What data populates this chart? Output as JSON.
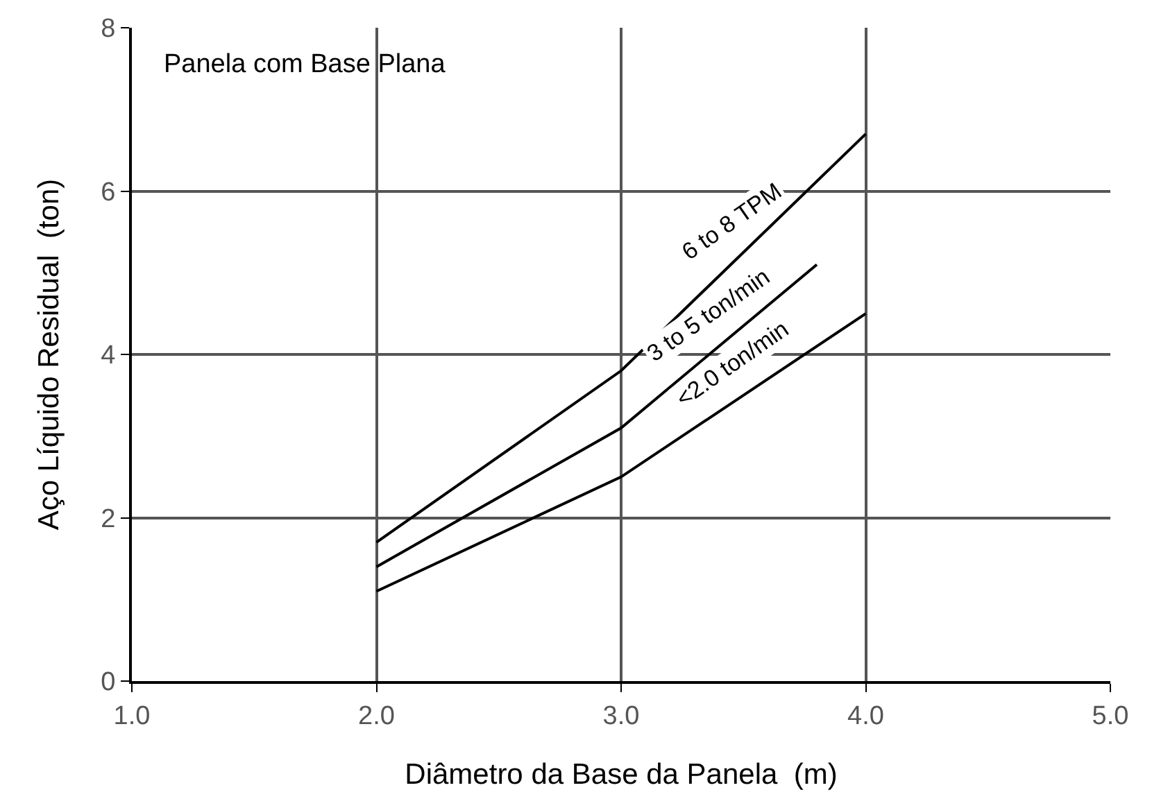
{
  "chart_data": {
    "type": "line",
    "xlabel": "Diâmetro da Base da Panela  (m)",
    "ylabel": "Aço Líquido Residual  (ton)",
    "series": [
      {
        "name": "6 to 8 TPM",
        "color": "#000000",
        "x": [
          2.0,
          3.0,
          4.0
        ],
        "values": [
          1.7,
          3.8,
          6.7
        ]
      },
      {
        "name": "3 to 5 ton/min",
        "color": "#000000",
        "x": [
          2.0,
          3.0,
          3.8
        ],
        "values": [
          1.4,
          3.1,
          5.1
        ]
      },
      {
        "name": "<2.0 ton/min",
        "color": "#000000",
        "x": [
          2.0,
          3.0,
          4.0
        ],
        "values": [
          1.1,
          2.5,
          4.5
        ]
      }
    ],
    "annotations": [
      "Panela com Base Plana"
    ],
    "xlim": [
      1,
      5
    ],
    "xticks": [
      {
        "value": 1,
        "label": "1.0"
      },
      {
        "value": 2,
        "label": "2.0"
      },
      {
        "value": 3,
        "label": "3.0"
      },
      {
        "value": 4,
        "label": "4.0"
      },
      {
        "value": 5,
        "label": "5.0"
      }
    ],
    "ylim": [
      0,
      8
    ],
    "yticks": [
      0,
      2,
      4,
      6,
      8
    ],
    "grid": true,
    "legend": false,
    "marker": "none",
    "line_style": "solid"
  }
}
